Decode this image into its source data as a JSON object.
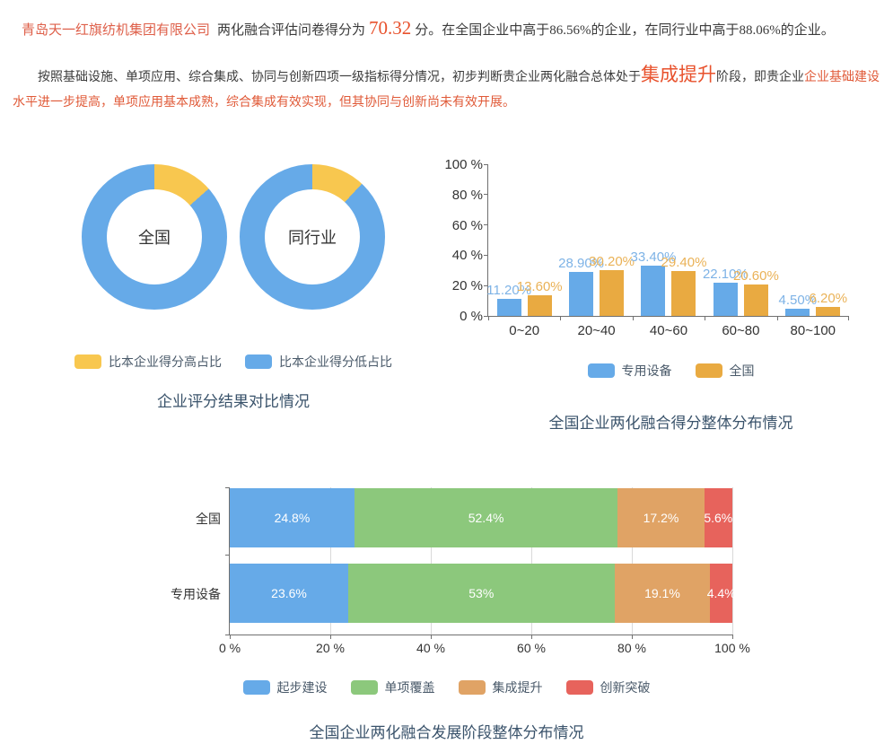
{
  "colors": {
    "highlight_orange": "#e8512c",
    "body_red": "#e05a38",
    "company_red": "#de5f49",
    "title_navy": "#3a536b",
    "blue": "#66aae8",
    "yellow": "#f8c74f",
    "bar_orange": "#e9aa41",
    "green": "#8cc87c",
    "stack_orange": "#e0a365",
    "red": "#e7635c"
  },
  "intro": {
    "company": "青岛天一红旗纺机集团有限公司",
    "score_label": "两化融合评估问卷得分为",
    "score": "70.32",
    "score_tail": "分。在全国企业中高于86.56%的企业，在同行业中高于88.06%的企业。",
    "stage_lead": "按照基础设施、单项应用、综合集成、协同与创新四项一级指标得分情况，初步判断贵企业两化融合总体处于",
    "stage": "集成提升",
    "stage_mid": "阶段，即贵企业",
    "stage_tail": "企业基础建设水平进一步提高，单项应用基本成熟，综合集成有效实现，但其协同与创新尚未有效开展。"
  },
  "chart_data": [
    {
      "type": "pie",
      "title": "企业评分结果对比情况",
      "donuts": [
        {
          "key": "national",
          "label": "全国",
          "slices": [
            {
              "key": "higher-share",
              "name": "比本企业得分高占比",
              "value": 13.44,
              "color": "#f8c74f"
            },
            {
              "key": "lower-share",
              "name": "比本企业得分低占比",
              "value": 86.56,
              "color": "#66aae8"
            }
          ]
        },
        {
          "key": "industry",
          "label": "同行业",
          "slices": [
            {
              "key": "higher-share",
              "name": "比本企业得分高占比",
              "value": 11.94,
              "color": "#f8c74f"
            },
            {
              "key": "lower-share",
              "name": "比本企业得分低占比",
              "value": 88.06,
              "color": "#66aae8"
            }
          ]
        }
      ],
      "legend": [
        {
          "key": "higher-share",
          "label": "比本企业得分高占比",
          "color": "#f8c74f"
        },
        {
          "key": "lower-share",
          "label": "比本企业得分低占比",
          "color": "#66aae8"
        }
      ],
      "legend_position": "bottom"
    },
    {
      "type": "bar",
      "title": "全国企业两化融合得分整体分布情况",
      "categories": [
        "0~20",
        "20~40",
        "40~60",
        "60~80",
        "80~100"
      ],
      "series": [
        {
          "key": "special-equipment",
          "name": "专用设备",
          "color": "#66aae8",
          "label_color": "#7eb3e6",
          "values": [
            11.2,
            28.9,
            33.4,
            22.1,
            4.5
          ],
          "labels": [
            "11.20%",
            "28.90%",
            "33.40%",
            "22.10%",
            "4.50%"
          ]
        },
        {
          "key": "national",
          "name": "全国",
          "color": "#e9aa41",
          "label_color": "#eab257",
          "values": [
            13.6,
            30.2,
            29.4,
            20.6,
            6.2
          ],
          "labels": [
            "13.60%",
            "30.20%",
            "29.40%",
            "20.60%",
            "6.20%"
          ]
        }
      ],
      "y_ticks": [
        "100 %",
        "80 %",
        "60 %",
        "40 %",
        "20 %",
        "0 %"
      ],
      "ylim": [
        0,
        100
      ],
      "grid": false,
      "legend_position": "bottom"
    },
    {
      "type": "stacked-bar-horizontal",
      "title": "全国企业两化融合发展阶段整体分布情况",
      "categories": [
        "全国",
        "专用设备"
      ],
      "series": [
        {
          "key": "start-building",
          "name": "起步建设",
          "color": "#66aae8",
          "values": [
            24.8,
            23.6
          ],
          "labels": [
            "24.8%",
            "23.6%"
          ]
        },
        {
          "key": "single-coverage",
          "name": "单项覆盖",
          "color": "#8cc87c",
          "values": [
            52.4,
            53
          ],
          "labels": [
            "52.4%",
            "53%"
          ]
        },
        {
          "key": "integration-upgrade",
          "name": "集成提升",
          "color": "#e0a365",
          "values": [
            17.2,
            19.1
          ],
          "labels": [
            "17.2%",
            "19.1%"
          ]
        },
        {
          "key": "innovation-breakthrough",
          "name": "创新突破",
          "color": "#e7635c",
          "values": [
            5.6,
            4.4
          ],
          "labels": [
            "5.6%",
            "4.4%"
          ]
        }
      ],
      "x_ticks": [
        "0 %",
        "20 %",
        "40 %",
        "60 %",
        "80 %",
        "100 %"
      ],
      "xlim": [
        0,
        100
      ],
      "grid": true,
      "legend_position": "bottom"
    }
  ]
}
